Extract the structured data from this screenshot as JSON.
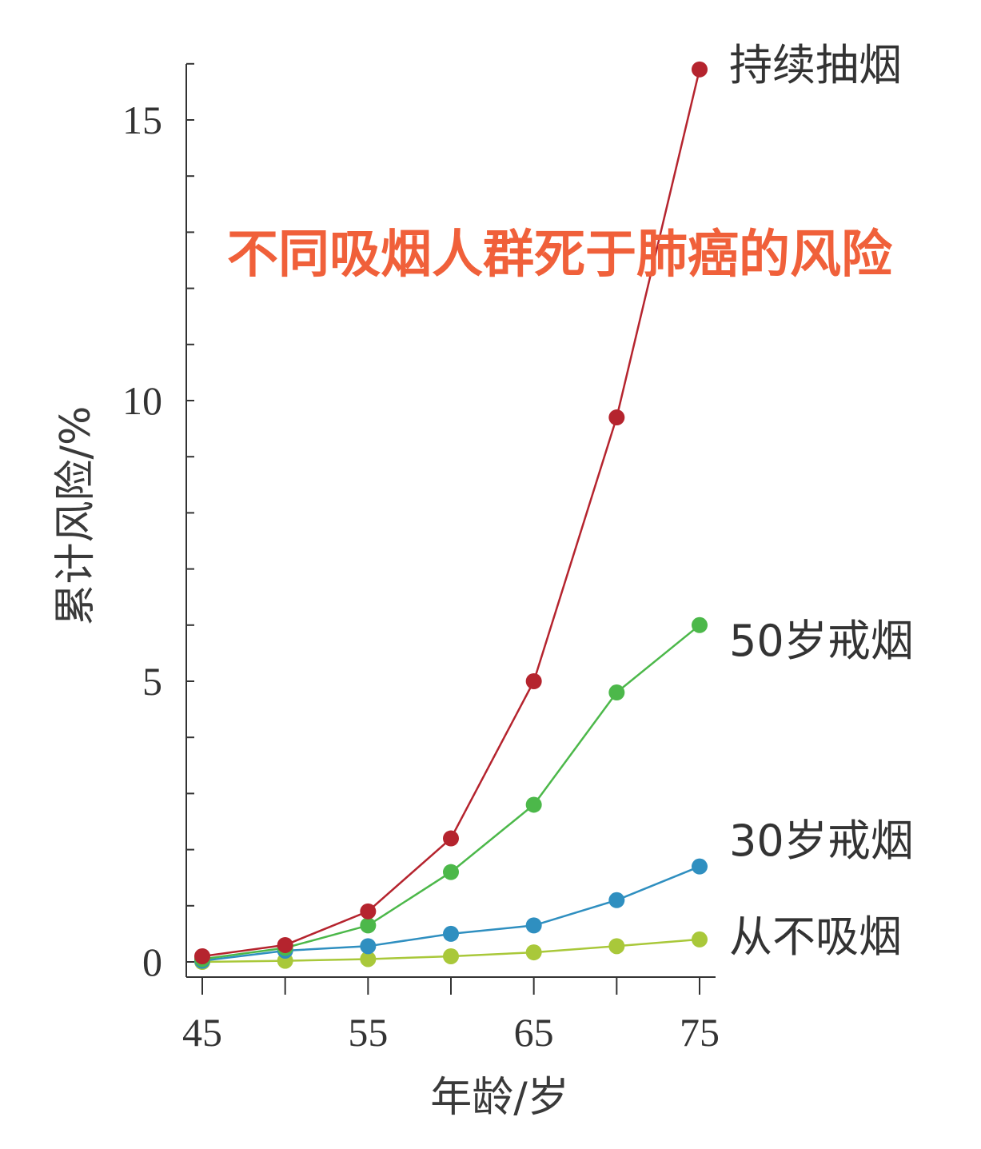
{
  "chart_data": {
    "type": "line",
    "title": "不同吸烟人群死于肺癌的风险",
    "title_color": "#f0603a",
    "xlabel": "年龄/岁",
    "ylabel": "累计风险/%",
    "xlim": [
      45,
      75
    ],
    "ylim": [
      0,
      16
    ],
    "x": [
      45,
      50,
      55,
      60,
      65,
      70,
      75
    ],
    "x_ticks": [
      "45",
      "55",
      "65",
      "75"
    ],
    "y_ticks": [
      "0",
      "5",
      "10",
      "15"
    ],
    "grid": false,
    "legend": "labels at right end of lines",
    "series": [
      {
        "name": "持续抽烟",
        "color": "#b5242e",
        "values": [
          0.1,
          0.3,
          0.9,
          2.2,
          5.0,
          9.7,
          15.9
        ]
      },
      {
        "name": "50岁戒烟",
        "color": "#4cb84a",
        "values": [
          0.05,
          0.25,
          0.65,
          1.6,
          2.8,
          4.8,
          6.0
        ]
      },
      {
        "name": "30岁戒烟",
        "color": "#2f8fc0",
        "values": [
          0.02,
          0.2,
          0.28,
          0.5,
          0.65,
          1.1,
          1.7
        ]
      },
      {
        "name": "从不吸烟",
        "color": "#a9c83a",
        "values": [
          0.0,
          0.02,
          0.05,
          0.1,
          0.17,
          0.28,
          0.4
        ]
      }
    ]
  }
}
